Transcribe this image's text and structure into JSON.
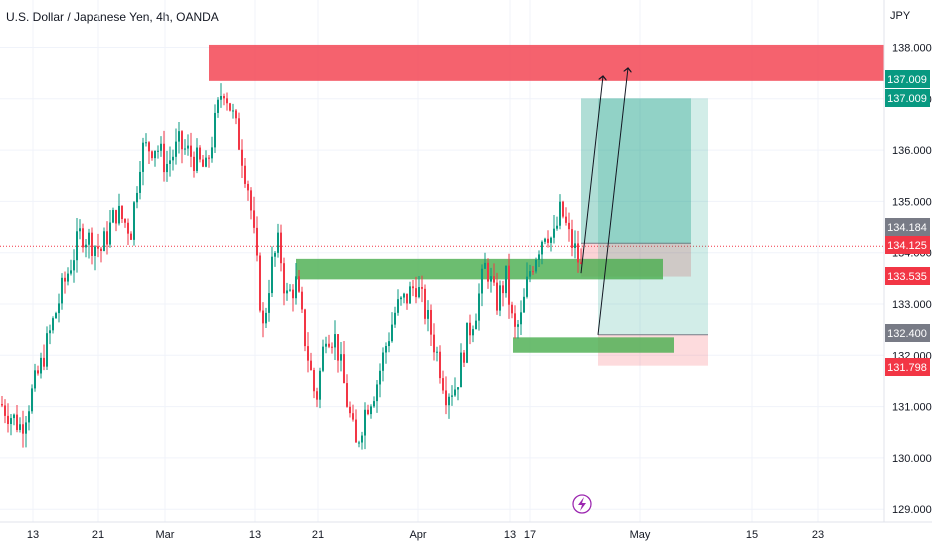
{
  "header": {
    "title": "U.S. Dollar / Japanese Yen, 4h, OANDA",
    "currency": "JPY"
  },
  "chart_data": {
    "type": "candlestick",
    "symbol": "USDJPY",
    "interval": "4h",
    "source": "OANDA",
    "y_axis": {
      "range": [
        128.8,
        138.3
      ],
      "ticks": [
        "138.000",
        "137.000",
        "136.000",
        "135.000",
        "134.000",
        "133.000",
        "132.000",
        "131.000",
        "130.000",
        "129.000"
      ]
    },
    "x_axis": {
      "ticks": [
        "13",
        "21",
        "Mar",
        "13",
        "21",
        "Apr",
        "13",
        "17",
        "May",
        "15",
        "23"
      ]
    },
    "price_tags": [
      {
        "label": "137.009",
        "price": 137.009,
        "color": "#089981"
      },
      {
        "label": "137.009",
        "price": 137.009,
        "color": "#089981"
      },
      {
        "label": "134.184",
        "price": 134.184,
        "color": "#787b86"
      },
      {
        "label": "134.125",
        "price": 134.125,
        "color": "#f23645"
      },
      {
        "label": "133.535",
        "price": 133.535,
        "color": "#f23645"
      },
      {
        "label": "132.400",
        "price": 132.4,
        "color": "#787b86"
      },
      {
        "label": "131.798",
        "price": 131.798,
        "color": "#f23645"
      }
    ],
    "current_price": 134.125,
    "zones": {
      "supply": {
        "top": 138.05,
        "bottom": 137.35,
        "color": "#f23645"
      },
      "demand_upper": {
        "top": 133.88,
        "bottom": 133.48,
        "color": "#4caf50"
      },
      "demand_lower": {
        "top": 132.35,
        "bottom": 132.05,
        "color": "#4caf50"
      }
    },
    "positions": [
      {
        "entry": 134.184,
        "stop": 133.535,
        "target": 137.009
      },
      {
        "entry": 132.4,
        "stop": 131.798,
        "target": 137.009
      }
    ],
    "path": [
      [
        0,
        131.05
      ],
      [
        20,
        130.6
      ],
      [
        40,
        131.8
      ],
      [
        60,
        133.2
      ],
      [
        80,
        134.4
      ],
      [
        100,
        134.05
      ],
      [
        115,
        134.8
      ],
      [
        130,
        134.45
      ],
      [
        140,
        136.0
      ],
      [
        155,
        136.1
      ],
      [
        165,
        135.7
      ],
      [
        178,
        136.1
      ],
      [
        190,
        135.9
      ],
      [
        205,
        135.6
      ],
      [
        215,
        136.6
      ],
      [
        222,
        137.3
      ],
      [
        230,
        136.8
      ],
      [
        240,
        136.0
      ],
      [
        248,
        135.2
      ],
      [
        255,
        133.9
      ],
      [
        262,
        132.5
      ],
      [
        270,
        133.7
      ],
      [
        278,
        134.2
      ],
      [
        285,
        133.1
      ],
      [
        295,
        133.4
      ],
      [
        305,
        132.2
      ],
      [
        315,
        131.1
      ],
      [
        325,
        132.5
      ],
      [
        335,
        132.3
      ],
      [
        345,
        131.2
      ],
      [
        355,
        130.2
      ],
      [
        365,
        131.0
      ],
      [
        375,
        131.4
      ],
      [
        385,
        132.2
      ],
      [
        395,
        132.9
      ],
      [
        405,
        133.1
      ],
      [
        415,
        133.4
      ],
      [
        425,
        132.8
      ],
      [
        435,
        132.1
      ],
      [
        445,
        131.3
      ],
      [
        455,
        131.4
      ],
      [
        465,
        132.3
      ],
      [
        475,
        132.9
      ],
      [
        485,
        133.8
      ],
      [
        495,
        133.0
      ],
      [
        505,
        133.5
      ],
      [
        513,
        132.4
      ],
      [
        520,
        132.7
      ],
      [
        528,
        133.6
      ],
      [
        535,
        134.0
      ],
      [
        545,
        134.5
      ],
      [
        552,
        134.2
      ],
      [
        560,
        134.85
      ],
      [
        568,
        134.3
      ],
      [
        575,
        134.0
      ],
      [
        581,
        133.6
      ]
    ]
  }
}
